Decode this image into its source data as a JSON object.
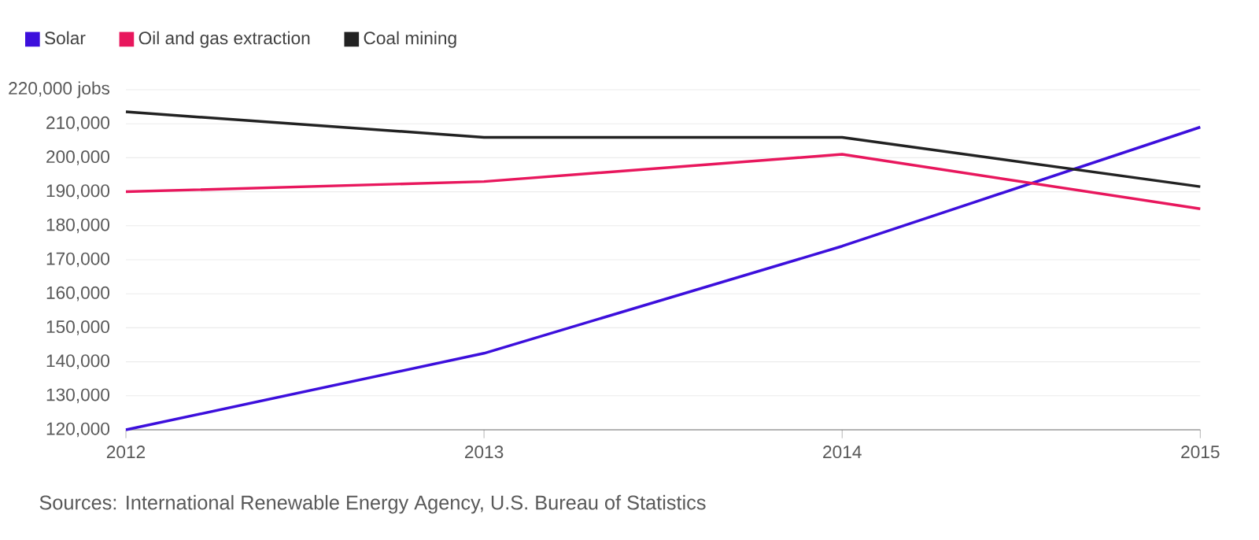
{
  "chart_data": {
    "type": "line",
    "x": [
      2012,
      2013,
      2014,
      2015
    ],
    "series": [
      {
        "name": "Solar",
        "color": "#3c0fdc",
        "values": [
          120000,
          142500,
          174000,
          209000
        ]
      },
      {
        "name": "Oil and gas extraction",
        "color": "#e8175d",
        "values": [
          190000,
          193000,
          201000,
          185000
        ]
      },
      {
        "name": "Coal mining",
        "color": "#222222",
        "values": [
          213500,
          206000,
          206000,
          191500
        ]
      }
    ],
    "xlim": [
      2012,
      2015
    ],
    "xticks": [
      2012,
      2013,
      2014,
      2015
    ],
    "ylim": [
      120000,
      220000
    ],
    "yticks": [
      {
        "value": 120000,
        "label": "120,000"
      },
      {
        "value": 130000,
        "label": "130,000"
      },
      {
        "value": 140000,
        "label": "140,000"
      },
      {
        "value": 150000,
        "label": "150,000"
      },
      {
        "value": 160000,
        "label": "160,000"
      },
      {
        "value": 170000,
        "label": "170,000"
      },
      {
        "value": 180000,
        "label": "180,000"
      },
      {
        "value": 190000,
        "label": "190,000"
      },
      {
        "value": 200000,
        "label": "200,000"
      },
      {
        "value": 210000,
        "label": "210,000"
      },
      {
        "value": 220000,
        "label": "220,000 jobs"
      }
    ],
    "grid": "y",
    "legend": "top left",
    "line_style": "solid",
    "annotations": [
      "Sources: International Renewable Energy Agency, U.S. Bureau of Statistics"
    ]
  }
}
